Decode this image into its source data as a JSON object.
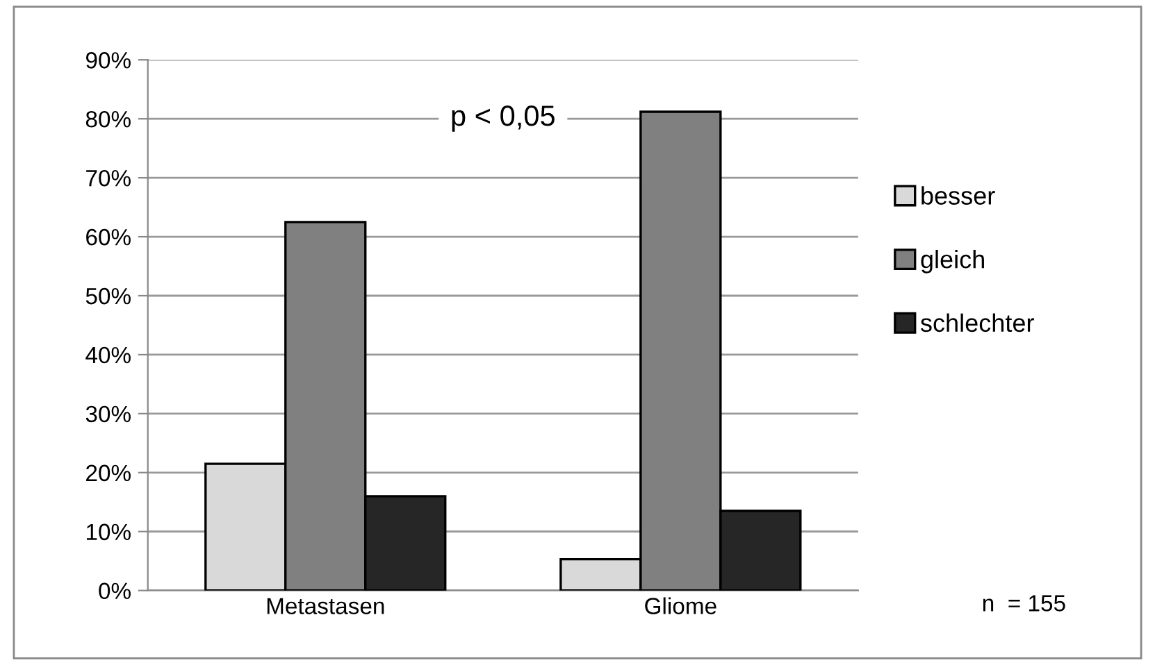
{
  "chart_data": {
    "type": "bar",
    "categories": [
      "Metastasen",
      "Gliome"
    ],
    "series": [
      {
        "name": "besser",
        "color": "#d9d9d9",
        "values": [
          21.5,
          5.3
        ]
      },
      {
        "name": "gleich",
        "color": "#808080",
        "values": [
          62.5,
          81.2
        ]
      },
      {
        "name": "schlechter",
        "color": "#262626",
        "values": [
          16,
          13.5
        ]
      }
    ],
    "ylim": [
      0,
      90
    ],
    "yticks": [
      {
        "value": 0,
        "label": "0%"
      },
      {
        "value": 10,
        "label": "10%"
      },
      {
        "value": 20,
        "label": "20%"
      },
      {
        "value": 30,
        "label": "30%"
      },
      {
        "value": 40,
        "label": "40%"
      },
      {
        "value": 50,
        "label": "50%"
      },
      {
        "value": 60,
        "label": "60%"
      },
      {
        "value": 70,
        "label": "70%"
      },
      {
        "value": 80,
        "label": "80%"
      },
      {
        "value": 90,
        "label": "90%"
      }
    ],
    "grid": "y",
    "legend": "right",
    "annotations": [
      "p < 0,05",
      "n  = 155"
    ]
  }
}
